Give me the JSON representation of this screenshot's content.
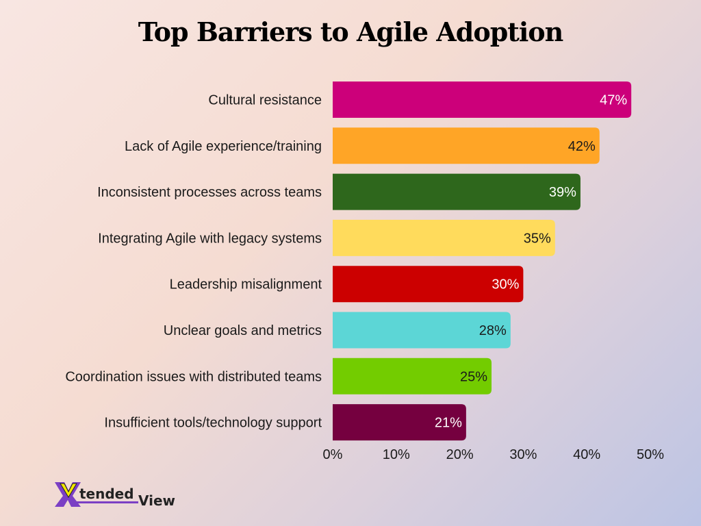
{
  "chart_data": {
    "type": "bar",
    "orientation": "horizontal",
    "title": "Top Barriers to Agile Adoption",
    "categories": [
      "Cultural resistance",
      "Lack of Agile experience/training",
      "Inconsistent processes across teams",
      "Integrating Agile with legacy systems",
      "Leadership misalignment",
      "Unclear goals and metrics",
      "Coordination issues with distributed teams",
      "Insufficient tools/technology support"
    ],
    "values": [
      47,
      42,
      39,
      35,
      30,
      28,
      25,
      21
    ],
    "data_labels": [
      "47%",
      "42%",
      "39%",
      "35%",
      "30%",
      "28%",
      "25%",
      "21%"
    ],
    "colors": [
      "#cc007a",
      "#ffa526",
      "#2e671c",
      "#ffdb5c",
      "#cc0000",
      "#5cd6d6",
      "#73cc00",
      "#75003f"
    ],
    "label_colors": [
      "#ffffff",
      "#1a1a1a",
      "#ffffff",
      "#1a1a1a",
      "#ffffff",
      "#1a1a1a",
      "#1a1a1a",
      "#ffffff"
    ],
    "xlim": [
      0,
      50
    ],
    "xticks": [
      0,
      10,
      20,
      30,
      40,
      50
    ],
    "xtick_labels": [
      "0%",
      "10%",
      "20%",
      "30%",
      "40%",
      "50%"
    ],
    "xlabel": "",
    "ylabel": "",
    "grid": false,
    "legend": "none"
  },
  "logo": {
    "text_part1": "tended",
    "text_part2": "View",
    "letter": "X",
    "colors": {
      "purple": "#7b3fc4",
      "yellow": "#f2e600"
    }
  }
}
